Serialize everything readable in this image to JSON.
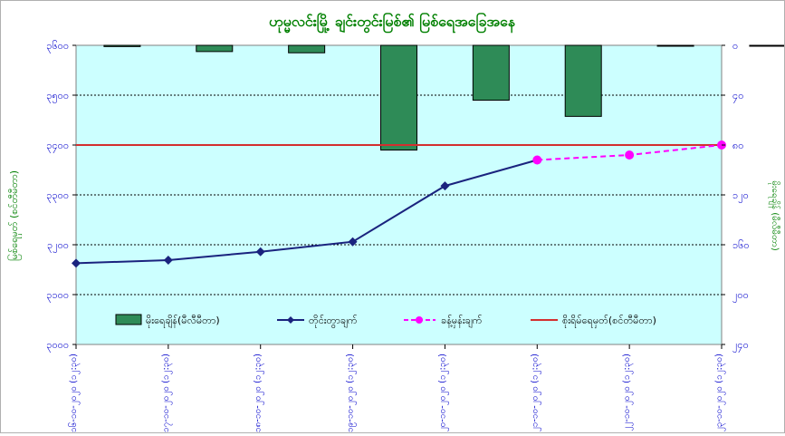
{
  "chart_data": {
    "type": "bar+line",
    "title": "ဟုမ္မလင်းမြို့ ချင်းတွင်းမြစ်၏ မြစ်ရေအခြေအနေ",
    "ylabel_left": "မြစ်ရေမှတ် (စင်တီမီတာ)",
    "ylabel_right": "မိုးရေချိန် (မီလီမီတာ)",
    "y_left": {
      "min": 3000,
      "max": 3600,
      "ticks": [
        3000,
        3100,
        3200,
        3300,
        3400,
        3500,
        3600
      ],
      "tick_labels": [
        "၃၀၀၀",
        "၃၁၀၀",
        "၃၂၀၀",
        "၃၃၀၀",
        "၃၄၀၀",
        "၃၅၀၀",
        "၃၆၀၀"
      ]
    },
    "y_right": {
      "min": 0,
      "max": 240,
      "inverted": true,
      "ticks": [
        0,
        40,
        80,
        120,
        160,
        200,
        240
      ],
      "tick_labels": [
        "၀",
        "၄၀",
        "၈၀",
        "၁၂၀",
        "၁၆၀",
        "၂၀၀",
        "၂၄၀"
      ]
    },
    "categories": [
      "၁၆-၁၀-၂၀၂၀ (၁၂:၃၀)",
      "၁၇-၁၀-၂၀၂၀ (၁၂:၃၀)",
      "၁၈-၁၀-၂၀၂၀ (၁၂:၃၀)",
      "၁၉-၁၀-၂၀၂၀ (၁၂:၃၀)",
      "၂၀-၁၀-၂၀၂၀ (၁၂:၃၀)",
      "၂၁-၁၀-၂၀၂၀ (၁၂:၃၀)",
      "၂၂-၁၀-၂၀၂၀ (၁၂:၃၀)",
      "၂၃-၁၀-၂၀၂၀ (၁၂:၃၀)"
    ],
    "series": [
      {
        "name": "မိုးရေချိန်(မီလီမီတာ)",
        "kind": "bar",
        "axis": "right",
        "color": "#2e8b57",
        "values": [
          1,
          5,
          6,
          84,
          44,
          57,
          0,
          0
        ]
      },
      {
        "name": "တိုင်းတွာချက်",
        "kind": "line",
        "axis": "left",
        "color": "#1a237e",
        "marker": "diamond",
        "values": [
          3163,
          3169,
          3186,
          3206,
          3318,
          3370,
          null,
          null
        ]
      },
      {
        "name": "ခန့်မှန်းချက်",
        "kind": "line-dashed",
        "axis": "left",
        "color": "#ff00ff",
        "marker": "circle",
        "values": [
          null,
          null,
          null,
          null,
          null,
          3370,
          3380,
          3400
        ]
      },
      {
        "name": "စိုးရိမ်ရေမှတ်(စင်တီမီတာ)",
        "kind": "hline",
        "axis": "left",
        "color": "#d32f2f",
        "value": 3400
      }
    ],
    "grid": true,
    "legend_position": "bottom-inside",
    "plot_background": "#ccffff",
    "title_color": "#008000",
    "axis_label_color": "#0000cc"
  }
}
